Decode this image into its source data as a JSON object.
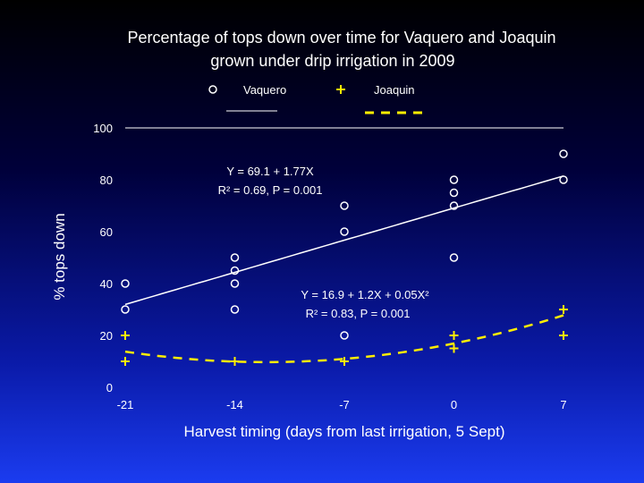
{
  "chart_data": {
    "type": "scatter",
    "title_lines": [
      "Percentage of tops down over time for Vaquero and Joaquin",
      "grown under drip irrigation in 2009"
    ],
    "xlabel": "Harvest timing (days from last irrigation, 5 Sept)",
    "ylabel": "% tops down",
    "xlim": [
      -21,
      7
    ],
    "ylim": [
      0,
      100
    ],
    "x_ticks": [
      -21,
      -14,
      -7,
      0,
      7
    ],
    "y_ticks": [
      0,
      20,
      40,
      60,
      80,
      100
    ],
    "grid": false,
    "legend_position": "top",
    "series": [
      {
        "name": "Vaquero",
        "marker": "circle",
        "line_style": "solid",
        "color": "#ffffff",
        "points": [
          {
            "x": -21,
            "y": 40
          },
          {
            "x": -21,
            "y": 30
          },
          {
            "x": -14,
            "y": 50
          },
          {
            "x": -14,
            "y": 45
          },
          {
            "x": -14,
            "y": 40
          },
          {
            "x": -14,
            "y": 30
          },
          {
            "x": -7,
            "y": 70
          },
          {
            "x": -7,
            "y": 60
          },
          {
            "x": -7,
            "y": 20
          },
          {
            "x": 0,
            "y": 80
          },
          {
            "x": 0,
            "y": 75
          },
          {
            "x": 0,
            "y": 70
          },
          {
            "x": 0,
            "y": 50
          },
          {
            "x": 7,
            "y": 90
          },
          {
            "x": 7,
            "y": 80
          }
        ],
        "fit": {
          "type": "linear",
          "intercept": 69.1,
          "slope": 1.77
        },
        "equation": "Y = 69.1 + 1.77X",
        "stats": "R² = 0.69, P = 0.001"
      },
      {
        "name": "Joaquin",
        "marker": "plus",
        "line_style": "dashed",
        "color": "#ffee00",
        "points": [
          {
            "x": -21,
            "y": 20
          },
          {
            "x": -21,
            "y": 10
          },
          {
            "x": -14,
            "y": 10
          },
          {
            "x": -7,
            "y": 10
          },
          {
            "x": 0,
            "y": 20
          },
          {
            "x": 0,
            "y": 15
          },
          {
            "x": 7,
            "y": 30
          },
          {
            "x": 7,
            "y": 20
          }
        ],
        "fit": {
          "type": "quadratic",
          "a": 16.9,
          "b": 1.2,
          "c": 0.05
        },
        "equation": "Y = 16.9 + 1.2X + 0.05X²",
        "stats": "R² = 0.83, P = 0.001"
      }
    ]
  }
}
